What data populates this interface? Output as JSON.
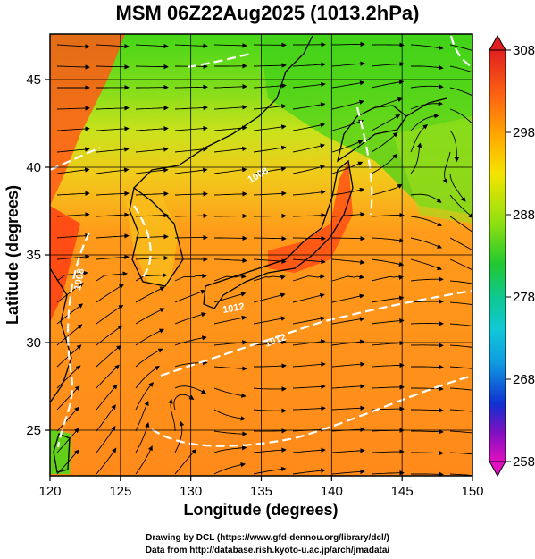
{
  "title": "MSM 06Z22Aug2025 (1013.2hPa)",
  "axes": {
    "xlabel": "Longitude (degrees)",
    "ylabel": "Latitude  (degrees)",
    "xlim": [
      120,
      150
    ],
    "ylim": [
      22.4,
      47.6
    ],
    "xticks": [
      120,
      125,
      130,
      135,
      140,
      145,
      150
    ],
    "yticks": [
      25,
      30,
      35,
      40,
      45
    ],
    "grid": true
  },
  "colorbar": {
    "range": [
      258,
      308
    ],
    "labels": [
      "308",
      "298",
      "288",
      "278",
      "268",
      "258"
    ]
  },
  "contour_labels": [
    "1008",
    "1008",
    "1012",
    "1012"
  ],
  "credits": [
    "Drawing by DCL (https://www.gfd-dennou.org/library/dcl/)",
    "Data from http://database.rish.kyoto-u.ac.jp/arch/jmadata/"
  ],
  "colors": {
    "ocean_south": "#ff8c1a",
    "north": "#3ed11a",
    "land_warm": "#ff4a14",
    "contour": "#ffffff"
  }
}
